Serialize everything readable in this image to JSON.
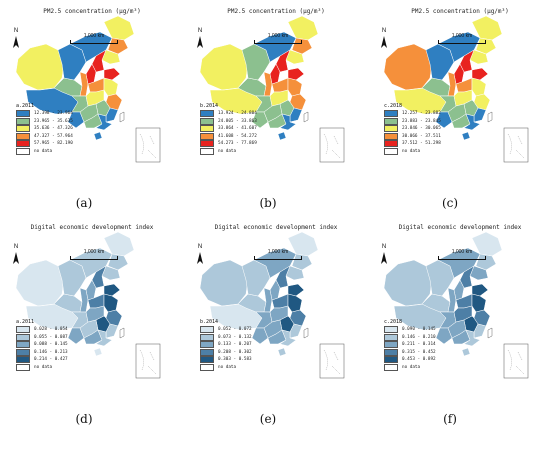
{
  "colors": {
    "pm_2011": [
      "#2f7fc1",
      "#8cc08f",
      "#f2f061",
      "#f5903b",
      "#e8231f"
    ],
    "pm_2014": [
      "#2f7fc1",
      "#8cc08f",
      "#f2f061",
      "#f5903b",
      "#e8231f"
    ],
    "pm_2018": [
      "#2f7fc1",
      "#8cc08f",
      "#f2f061",
      "#f5903b",
      "#e8231f"
    ],
    "dig": [
      "#d8e6ef",
      "#adc8da",
      "#7ea6c3",
      "#4d7fa6",
      "#205882"
    ],
    "nodata": "#ffffff"
  },
  "panels": [
    {
      "id": "a",
      "title": "PM2.5 concentration (μg/m³)",
      "caption": "(a)",
      "legend_title": "a.2011",
      "palette": "pm_2011",
      "north": "N",
      "scale": "1,000 km",
      "legend": [
        "12.398 - 23.964",
        "23.965 - 35.635",
        "35.636 - 47.326",
        "47.327 - 57.964",
        "57.965 - 82.190",
        "no data"
      ],
      "region_classes": [
        2,
        0,
        1,
        0,
        0,
        2,
        3,
        2,
        4,
        4,
        4,
        3,
        3,
        2,
        1,
        2,
        3,
        1,
        0,
        1,
        0,
        1,
        0,
        0
      ]
    },
    {
      "id": "b",
      "title": "PM2.5 concentration (μg/m³)",
      "caption": "(b)",
      "legend_title": "b.2014",
      "palette": "pm_2014",
      "north": "N",
      "scale": "1,000 km",
      "legend": [
        "13.924 - 24.804",
        "24.805 - 33.863",
        "33.864 - 41.607",
        "41.608 - 54.272",
        "54.273 - 77.869",
        "no data"
      ],
      "region_classes": [
        2,
        2,
        1,
        1,
        0,
        2,
        3,
        2,
        4,
        4,
        4,
        3,
        3,
        3,
        1,
        2,
        3,
        1,
        1,
        1,
        0,
        1,
        0,
        0
      ]
    },
    {
      "id": "c",
      "title": "PM2.5 concentration (μg/m³)",
      "caption": "(c)",
      "legend_title": "c.2018",
      "palette": "pm_2018",
      "north": "N",
      "scale": "1,000 km",
      "legend": [
        "12.257 - 23.882",
        "23.883 - 23.845",
        "23.846 - 30.065",
        "30.066 - 37.511",
        "37.512 - 51.298",
        "no data"
      ],
      "region_classes": [
        3,
        2,
        1,
        0,
        0,
        2,
        2,
        2,
        4,
        4,
        4,
        3,
        3,
        2,
        1,
        2,
        2,
        1,
        0,
        1,
        0,
        1,
        0,
        0
      ]
    },
    {
      "id": "d",
      "title": "Digital economic development index",
      "caption": "(d)",
      "legend_title": "a.2011",
      "palette": "dig",
      "north": "N",
      "scale": "1,000 km",
      "legend": [
        "0.028 - 0.054",
        "0.055 - 0.087",
        "0.088 - 0.145",
        "0.146 - 0.213",
        "0.214 - 0.427",
        "no data"
      ],
      "region_classes": [
        0,
        0,
        1,
        1,
        1,
        0,
        1,
        1,
        3,
        4,
        2,
        2,
        3,
        4,
        1,
        2,
        3,
        4,
        2,
        1,
        1,
        2,
        1,
        0
      ]
    },
    {
      "id": "e",
      "title": "Digital economic development index",
      "caption": "(e)",
      "legend_title": "b.2014",
      "palette": "dig",
      "north": "N",
      "scale": "1,000 km",
      "legend": [
        "0.052 - 0.072",
        "0.073 - 0.132",
        "0.133 - 0.207",
        "0.208 - 0.302",
        "0.303 - 0.583",
        "no data"
      ],
      "region_classes": [
        1,
        0,
        1,
        1,
        2,
        0,
        1,
        1,
        3,
        4,
        2,
        2,
        3,
        4,
        2,
        2,
        3,
        4,
        2,
        2,
        1,
        2,
        1,
        1
      ]
    },
    {
      "id": "f",
      "title": "Digital economic development index",
      "caption": "(f)",
      "legend_title": "c.2018",
      "palette": "dig",
      "north": "N",
      "scale": "1,000 km",
      "legend": [
        "0.090 - 0.145",
        "0.146 - 0.210",
        "0.211 - 0.314",
        "0.315 - 0.452",
        "0.453 - 0.892",
        "no data"
      ],
      "region_classes": [
        1,
        1,
        1,
        1,
        2,
        0,
        1,
        2,
        3,
        4,
        2,
        2,
        3,
        4,
        2,
        3,
        3,
        4,
        2,
        2,
        1,
        2,
        1,
        1
      ]
    }
  ]
}
